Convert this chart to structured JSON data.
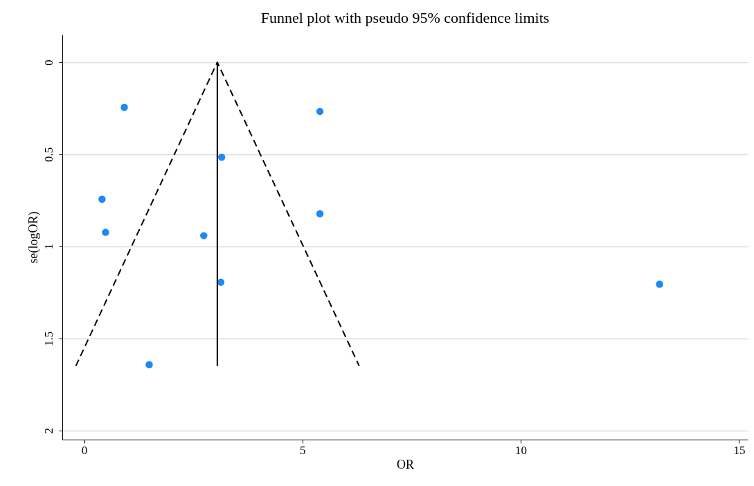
{
  "chart_data": {
    "type": "scatter",
    "title": "Funnel plot with pseudo 95% confidence limits",
    "xlabel": "OR",
    "ylabel": "se(logOR)",
    "xlim": [
      -0.5,
      15.2
    ],
    "xticks": [
      0,
      5,
      10,
      15
    ],
    "ylim": [
      2.05,
      -0.15
    ],
    "yticks": [
      0,
      0.5,
      1,
      1.5,
      2
    ],
    "grid": "y",
    "series": [
      {
        "color": "#1e88f5",
        "marker": "circle",
        "x": [
          0.92,
          5.4,
          3.15,
          0.41,
          5.4,
          0.49,
          2.74,
          3.13,
          13.18,
          1.49
        ],
        "values": [
          0.245,
          0.267,
          0.516,
          0.744,
          0.823,
          0.924,
          0.942,
          1.195,
          1.206,
          1.643
        ]
      },
      {
        "type": "line",
        "color": "#000000",
        "line_style": "dashed",
        "marker": "none",
        "x": [
          -0.19,
          3.05,
          6.3
        ],
        "values": [
          1.65,
          0,
          1.65
        ]
      },
      {
        "type": "line",
        "color": "#000000",
        "line_style": "solid",
        "marker": "none",
        "x": [
          3.05,
          3.05
        ],
        "values": [
          0,
          1.65
        ]
      }
    ]
  }
}
